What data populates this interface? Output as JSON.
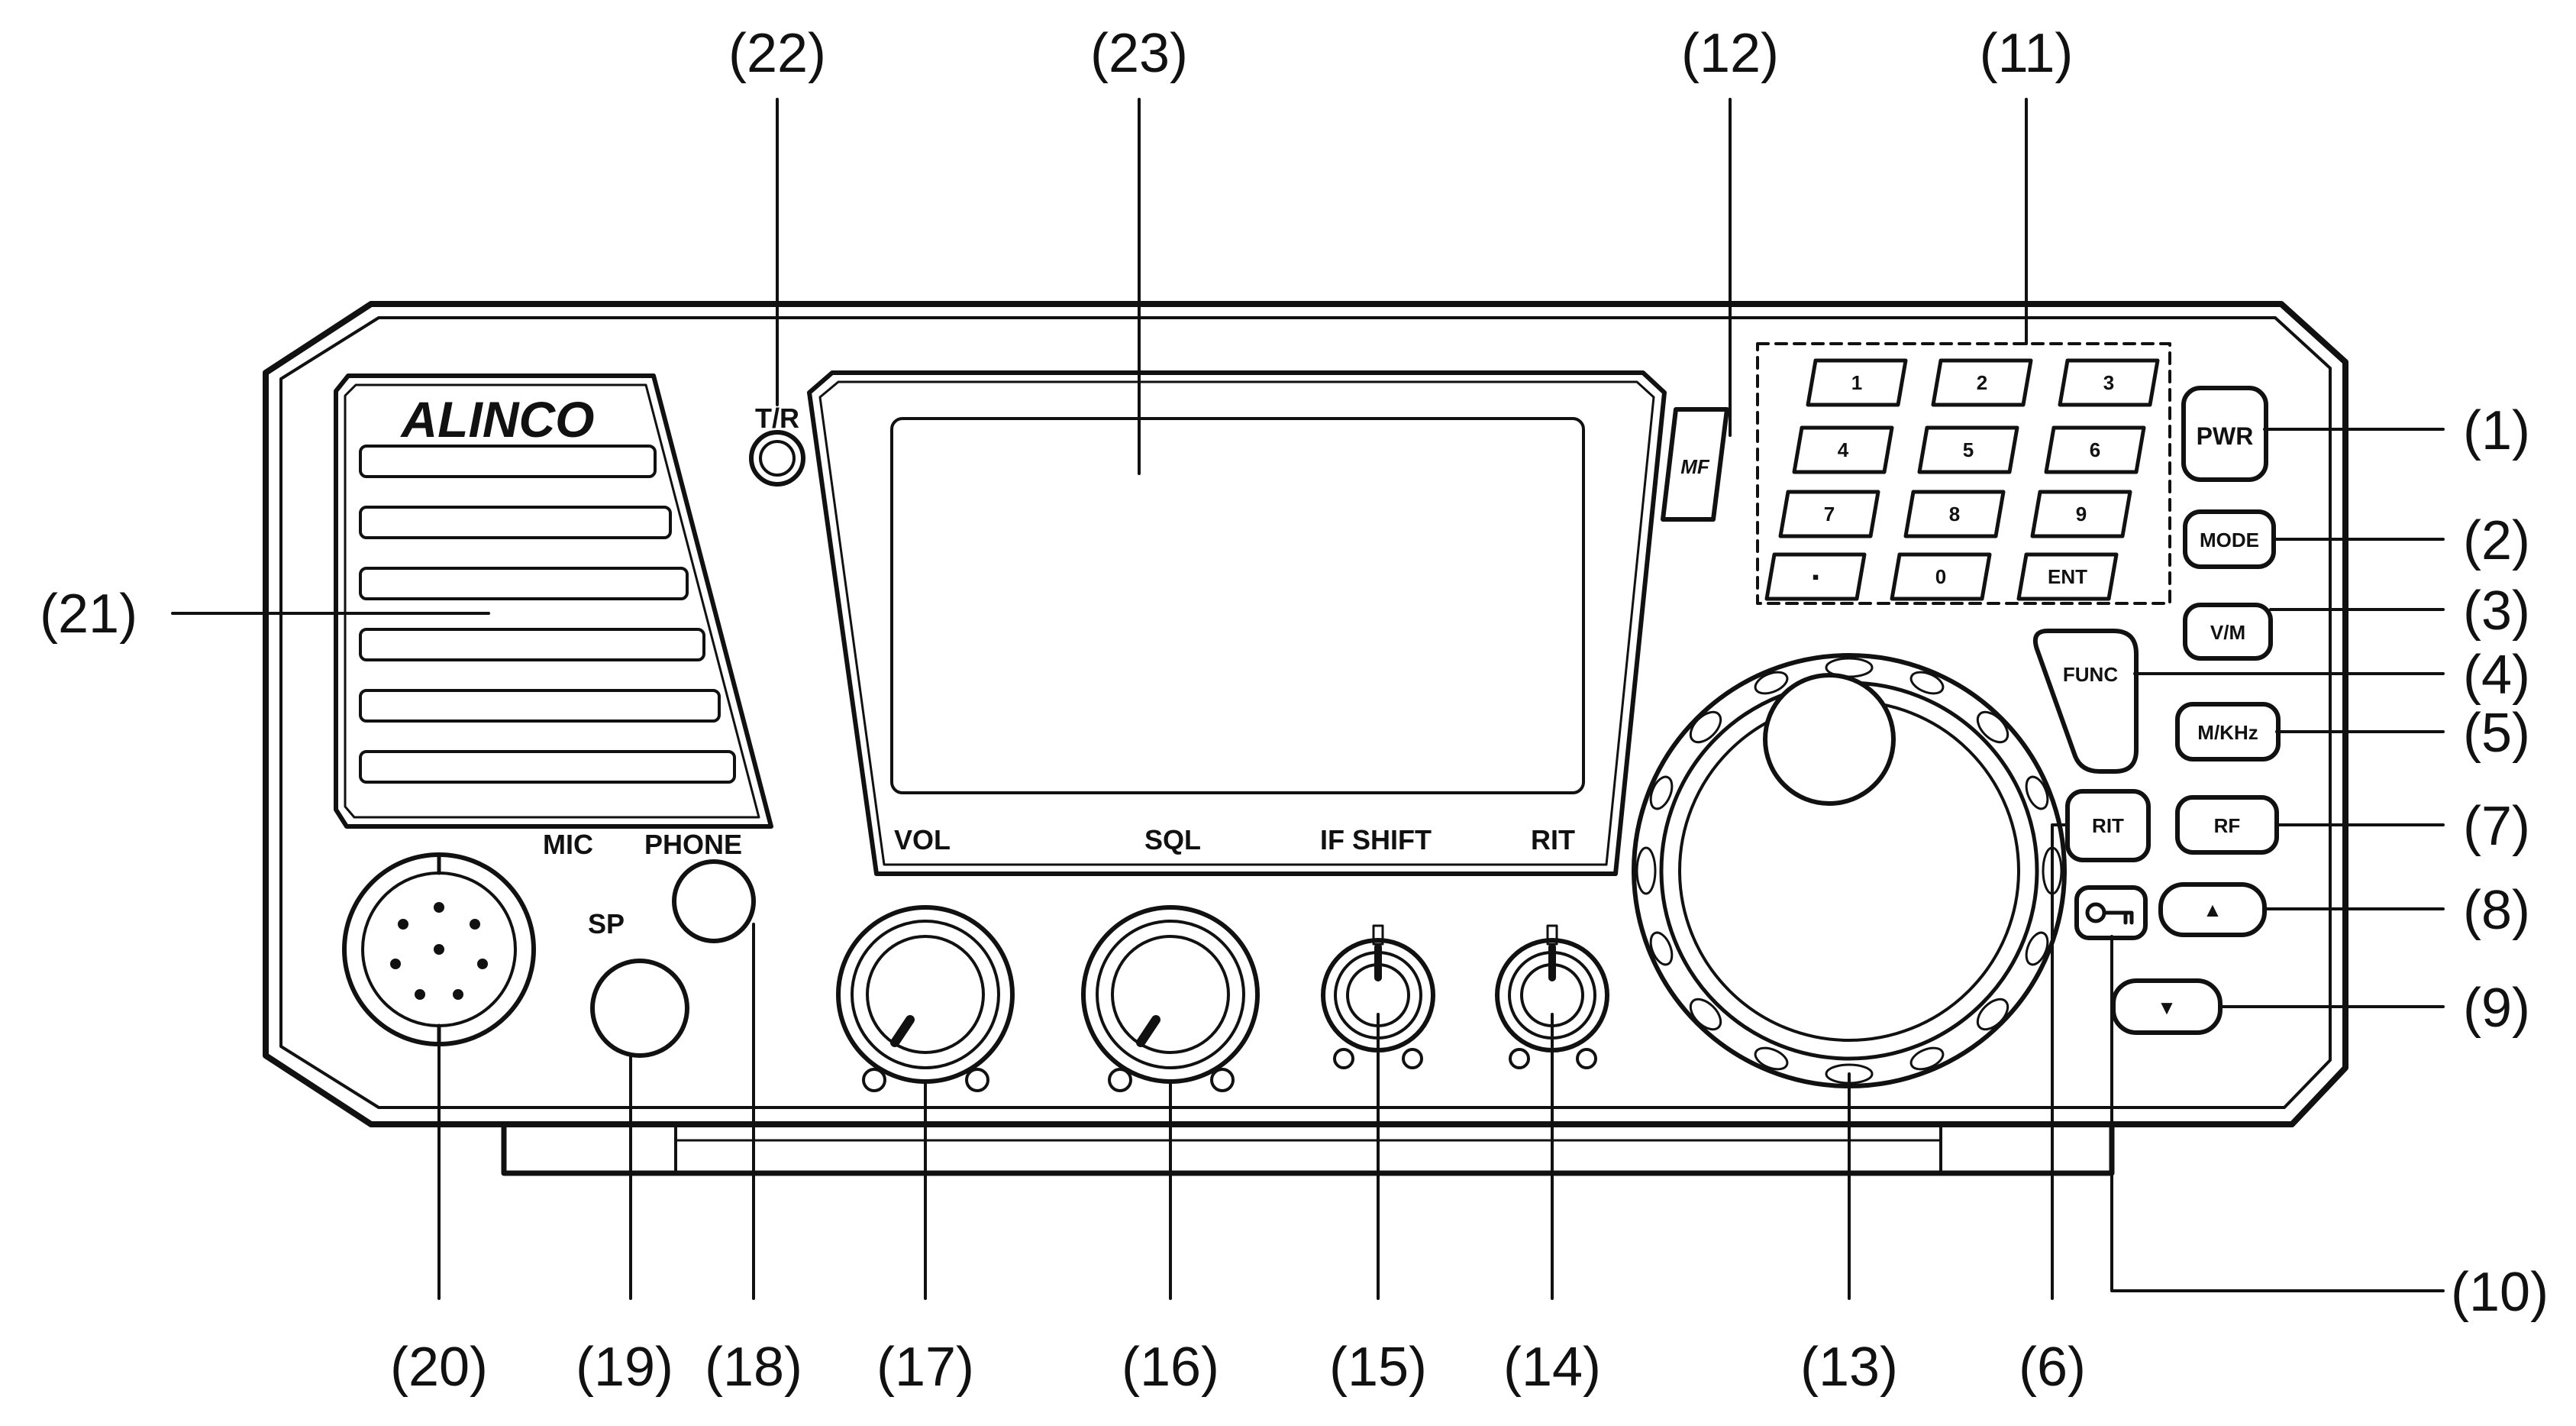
{
  "brand": "ALINCO",
  "panel_labels": {
    "tr": "T/R",
    "mic": "MIC",
    "phone": "PHONE",
    "sp": "SP",
    "vol": "VOL",
    "sql": "SQL",
    "if_shift": "IF SHIFT",
    "rit": "RIT"
  },
  "buttons": {
    "pwr": "PWR",
    "mode": "MODE",
    "vm": "V/M",
    "func": "FUNC",
    "mkhz": "M/KHz",
    "rit": "RIT",
    "rf": "RF",
    "up": "▲",
    "down": "▼",
    "mf": "MF"
  },
  "keypad": [
    "1",
    "2",
    "3",
    "4",
    "5",
    "6",
    "7",
    "8",
    "9",
    "▪",
    "0",
    "ENT"
  ],
  "callouts": {
    "c1": "(1)",
    "c2": "(2)",
    "c3": "(3)",
    "c4": "(4)",
    "c5": "(5)",
    "c6": "(6)",
    "c7": "(7)",
    "c8": "(8)",
    "c9": "(9)",
    "c10": "(10)",
    "c11": "(11)",
    "c12": "(12)",
    "c13": "(13)",
    "c14": "(14)",
    "c15": "(15)",
    "c16": "(16)",
    "c17": "(17)",
    "c18": "(18)",
    "c19": "(19)",
    "c20": "(20)",
    "c21": "(21)",
    "c22": "(22)",
    "c23": "(23)"
  }
}
